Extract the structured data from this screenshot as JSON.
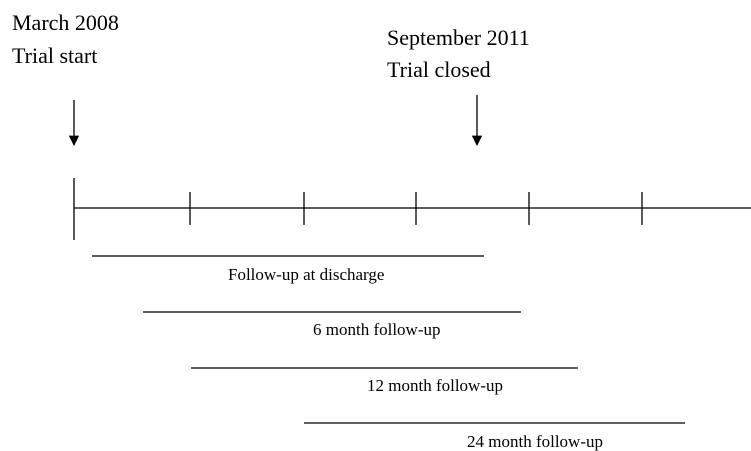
{
  "events": [
    {
      "date": "March 2008",
      "label": "Trial start"
    },
    {
      "date": "September 2011",
      "label": "Trial closed"
    }
  ],
  "periods": [
    "Follow-up at discharge",
    "6 month follow-up",
    "12 month follow-up",
    "24 month follow-up"
  ]
}
